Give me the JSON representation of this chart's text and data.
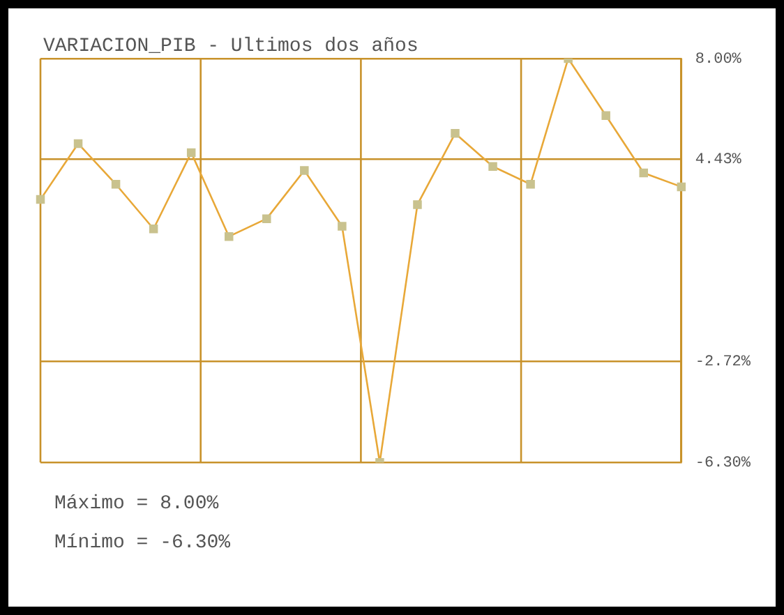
{
  "chart_data": {
    "type": "line",
    "title": "VARIACION_PIB - Ultimos dos años",
    "categories": [
      null,
      null,
      null,
      null,
      null,
      null,
      null,
      null,
      null,
      null,
      null,
      null,
      null,
      null,
      null,
      null,
      null,
      null
    ],
    "series": [
      {
        "color": "#e8a838",
        "values": [
          3.01,
          4.99,
          3.55,
          1.97,
          4.67,
          1.7,
          2.33,
          4.04,
          2.06,
          -6.3,
          2.83,
          5.35,
          4.18,
          3.55,
          8.0,
          5.98,
          3.95,
          3.46
        ]
      }
    ],
    "ylim": [
      -6.3,
      8.0
    ],
    "yticks": [
      {
        "value": 8.0,
        "label": "8.00%"
      },
      {
        "value": 4.43,
        "label": "4.43%"
      },
      {
        "value": -2.72,
        "label": "-2.72%"
      },
      {
        "value": -6.3,
        "label": "-6.30%"
      }
    ],
    "grid": true,
    "legend": false,
    "marker": "square",
    "line_style": "solid",
    "annotations": [
      "Máximo = 8.00%",
      "Mínimo = -6.30%"
    ]
  }
}
